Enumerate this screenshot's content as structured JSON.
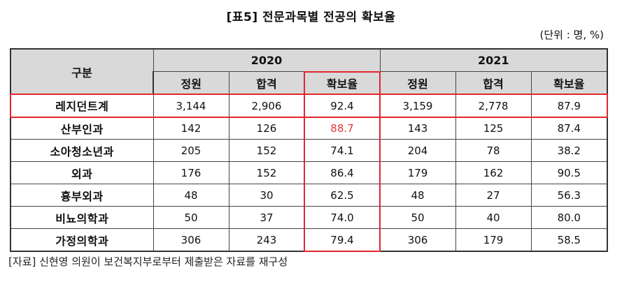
{
  "title": "[표5] 전문과목별 전공의 확보율",
  "unit": "(단위 : 명, %)",
  "table": {
    "corner": "구분",
    "years": [
      "2020",
      "2021"
    ],
    "columns": [
      "정원",
      "합격",
      "확보율",
      "정원",
      "합격",
      "확보율"
    ],
    "rows": [
      {
        "label": "레지던트계",
        "cells": [
          "3,144",
          "2,906",
          "92.4",
          "3,159",
          "2,778",
          "87.9"
        ]
      },
      {
        "label": "산부인과",
        "cells": [
          "142",
          "126",
          "88.7",
          "143",
          "125",
          "87.4"
        ]
      },
      {
        "label": "소아청소년과",
        "cells": [
          "205",
          "152",
          "74.1",
          "204",
          "78",
          "38.2"
        ]
      },
      {
        "label": "외과",
        "cells": [
          "176",
          "152",
          "86.4",
          "179",
          "162",
          "90.5"
        ]
      },
      {
        "label": "흉부외과",
        "cells": [
          "48",
          "30",
          "62.5",
          "48",
          "27",
          "56.3"
        ]
      },
      {
        "label": "비뇨의학과",
        "cells": [
          "50",
          "37",
          "74.0",
          "50",
          "40",
          "80.0"
        ]
      },
      {
        "label": "가정의학과",
        "cells": [
          "306",
          "243",
          "79.4",
          "306",
          "179",
          "58.5"
        ]
      }
    ],
    "highlight_color": "#e3262d"
  },
  "source": "[자료] 신현영 의원이 보건복지부로부터 제출받은 자료를 재구성"
}
